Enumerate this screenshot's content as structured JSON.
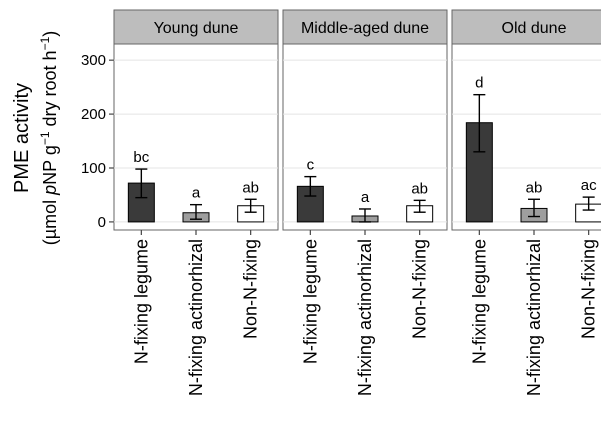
{
  "chart_data": {
    "type": "bar",
    "categories": [
      "N-fixing legume",
      "N-fixing actinorhizal",
      "Non-N-fixing"
    ],
    "y_tick_labels": [
      "0",
      "100",
      "200",
      "300"
    ],
    "ylim": [
      -15,
      330
    ],
    "ylabel": {
      "line1": "PME activity",
      "line2_parts": [
        {
          "text": "(",
          "style": "normal"
        },
        {
          "text": "µ",
          "style": "normal"
        },
        {
          "text": "mol ",
          "style": "normal"
        },
        {
          "text": "p",
          "style": "italic"
        },
        {
          "text": "NP g",
          "style": "normal"
        },
        {
          "text": "−1",
          "style": "sup"
        },
        {
          "text": " dry root h",
          "style": "normal"
        },
        {
          "text": "−1",
          "style": "sup"
        },
        {
          "text": ")",
          "style": "normal"
        }
      ]
    },
    "bar_colors": [
      "#3a3a3a",
      "#9e9e9e",
      "#ffffff"
    ],
    "grid": true,
    "panels": [
      {
        "title": "Young dune",
        "values": [
          72,
          17,
          30
        ],
        "err_low": [
          45,
          5,
          18
        ],
        "err_high": [
          98,
          32,
          42
        ],
        "letters": [
          "bc",
          "a",
          "ab"
        ]
      },
      {
        "title": "Middle-aged dune",
        "values": [
          66,
          11,
          30
        ],
        "err_low": [
          48,
          0,
          18
        ],
        "err_high": [
          84,
          24,
          40
        ],
        "letters": [
          "c",
          "a",
          "ab"
        ]
      },
      {
        "title": "Old dune",
        "values": [
          184,
          25,
          33
        ],
        "err_low": [
          130,
          10,
          22
        ],
        "err_high": [
          236,
          42,
          46
        ],
        "letters": [
          "d",
          "ab",
          "ac"
        ]
      }
    ]
  }
}
